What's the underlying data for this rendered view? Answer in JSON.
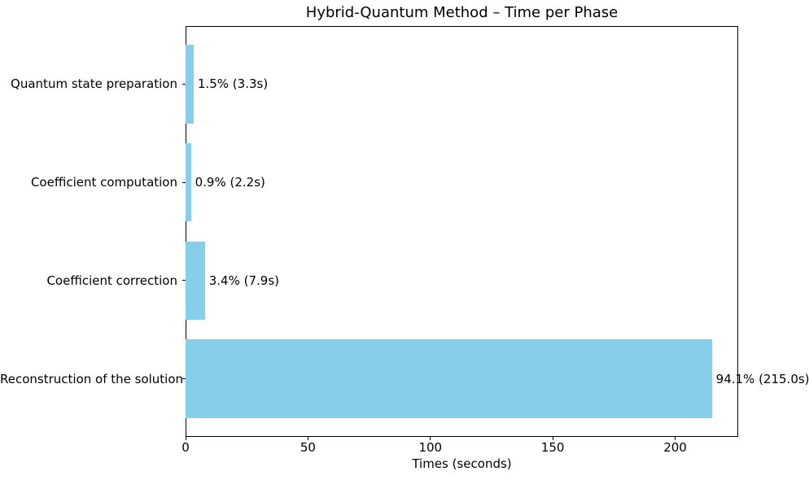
{
  "chart_data": {
    "type": "bar",
    "orientation": "horizontal",
    "title": "Hybrid-Quantum Method – Time per Phase",
    "xlabel": "Times (seconds)",
    "ylabel": "",
    "categories": [
      "Quantum state preparation",
      "Coefficient computation",
      "Coefficient correction",
      "Reconstruction of the solution"
    ],
    "values": [
      3.3,
      2.2,
      7.9,
      215.0
    ],
    "bar_labels": [
      "1.5% (3.3s)",
      "0.9% (2.2s)",
      "3.4% (7.9s)",
      "94.1% (215.0s)"
    ],
    "x_ticks": [
      0,
      50,
      100,
      150,
      200
    ],
    "xlim": [
      0,
      225.75
    ],
    "bar_color": "#87CEEB",
    "spine_color": "#000000",
    "text_color": "#000000",
    "background_color": "#ffffff",
    "grid": false,
    "legend": "none"
  }
}
